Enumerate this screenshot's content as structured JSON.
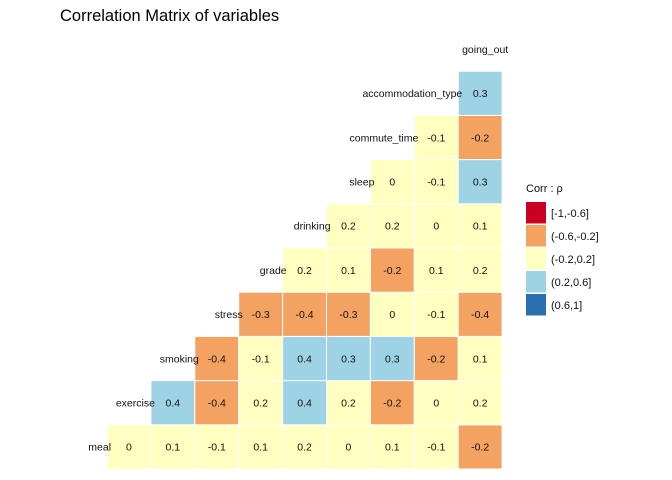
{
  "chart_data": {
    "type": "heatmap",
    "title": "Correlation Matrix of variables",
    "variables": [
      "meal",
      "exercise",
      "smoking",
      "stress",
      "grade",
      "drinking",
      "sleep",
      "commute_time",
      "accommodation_type",
      "going_out"
    ],
    "matrix": [
      [
        0,
        0.1,
        -0.1,
        0.1,
        0.2,
        0,
        0.1,
        -0.1,
        -0.2
      ],
      [
        0.4,
        -0.4,
        0.2,
        0.4,
        0.2,
        -0.2,
        0,
        0.2
      ],
      [
        -0.4,
        -0.1,
        0.4,
        0.3,
        0.3,
        -0.2,
        0.1
      ],
      [
        -0.3,
        -0.4,
        -0.3,
        0,
        -0.1,
        -0.4
      ],
      [
        0.2,
        0.1,
        -0.2,
        0.1,
        0.2
      ],
      [
        0.2,
        0.2,
        0,
        0.1
      ],
      [
        0,
        -0.1,
        0.3
      ],
      [
        -0.1,
        -0.2
      ],
      [
        0.3
      ]
    ],
    "legend": {
      "title": "Corr : ρ",
      "position": "right",
      "bins": [
        {
          "label": "[-1,-0.6]",
          "color": "#ca0020"
        },
        {
          "label": "(-0.6,-0.2]",
          "color": "#f4a261"
        },
        {
          "label": "(-0.2,0.2]",
          "color": "#ffffbf"
        },
        {
          "label": "(0.2,0.6]",
          "color": "#9ed3e6"
        },
        {
          "label": "(0.6,1]",
          "color": "#2c6fb0"
        }
      ]
    }
  }
}
